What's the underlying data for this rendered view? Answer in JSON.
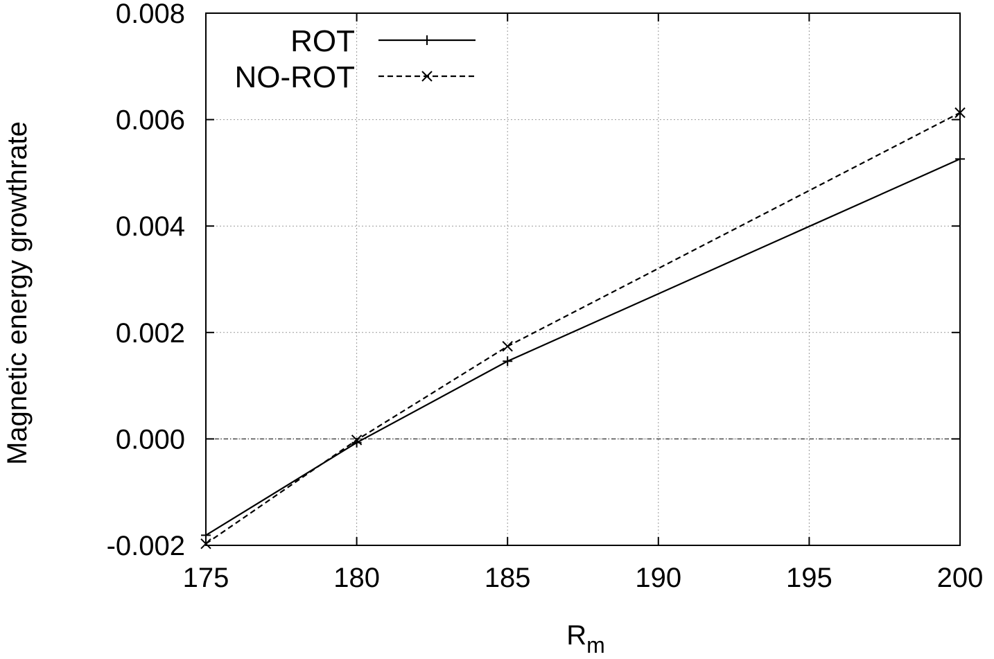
{
  "chart_data": {
    "type": "line",
    "title": "",
    "xlabel": "R",
    "xlabel_subscript": "m",
    "ylabel": "Magnetic energy growthrate",
    "xlim": [
      175,
      200
    ],
    "ylim": [
      -0.002,
      0.008
    ],
    "x_ticks": [
      175,
      180,
      185,
      190,
      195,
      200
    ],
    "y_ticks": [
      -0.002,
      0.0,
      0.002,
      0.004,
      0.006,
      0.008
    ],
    "x_tick_labels": [
      "175",
      "180",
      "185",
      "190",
      "195",
      "200"
    ],
    "y_tick_labels": [
      "-0.002",
      "0.000",
      "0.002",
      "0.004",
      "0.006",
      "0.008"
    ],
    "grid": true,
    "zero_line": true,
    "legend_position": "top-left",
    "series": [
      {
        "name": "ROT",
        "marker": "plus",
        "line_style": "solid",
        "color": "#000000",
        "x": [
          175,
          180,
          185,
          200
        ],
        "y": [
          -0.00181,
          -7e-05,
          0.00146,
          0.00526
        ]
      },
      {
        "name": "NO-ROT",
        "marker": "cross",
        "line_style": "dashed",
        "color": "#000000",
        "x": [
          175,
          180,
          185,
          200
        ],
        "y": [
          -0.00197,
          -2e-05,
          0.00174,
          0.00613
        ]
      }
    ]
  }
}
